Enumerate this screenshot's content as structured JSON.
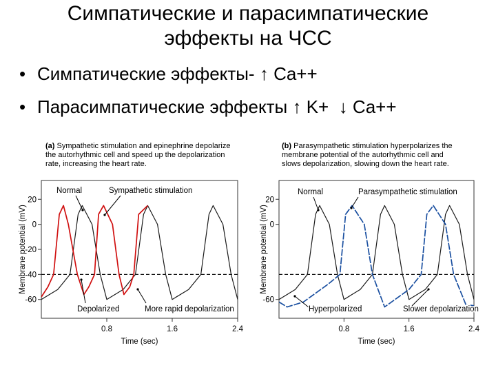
{
  "slide": {
    "title_line1": "Симпатические и парасимпатические",
    "title_line2": "эффекты на ЧСС",
    "bullets": [
      {
        "prefix": "Симпатические эффекты-",
        "arrow1": "↑",
        "text1": "Ca++",
        "arrow2": "",
        "text2": ""
      },
      {
        "prefix": "Парасимпатические эффекты",
        "arrow1": "↑",
        "text1": "K+",
        "arrow2": "↓",
        "text2": "Ca++"
      }
    ]
  },
  "chart_data": [
    {
      "type": "line",
      "panel": "(a)",
      "caption": [
        "Sympathetic stimulation and epinephrine depolarize",
        "the autorhythmic cell and speed up the depolarization",
        "rate, increasing the heart rate."
      ],
      "ylabel": "Membrane potential (mV)",
      "xlabel": "Time (sec)",
      "xlim": [
        0,
        2.4
      ],
      "ylim": [
        -75,
        35
      ],
      "xticks": [
        0.8,
        1.6,
        2.4
      ],
      "yticks": [
        20,
        0,
        -20,
        -40,
        -60
      ],
      "threshold": -40,
      "series": [
        {
          "name": "Normal",
          "color": "#1a1a1a",
          "x": [
            0,
            0.2,
            0.35,
            0.45,
            0.5,
            0.62,
            0.72,
            0.8,
            1.0,
            1.15,
            1.25,
            1.3,
            1.42,
            1.52,
            1.6,
            1.8,
            1.95,
            2.05,
            2.1,
            2.22,
            2.32,
            2.4
          ],
          "y": [
            -60,
            -52,
            -40,
            8,
            15,
            0,
            -40,
            -60,
            -52,
            -40,
            8,
            15,
            0,
            -40,
            -60,
            -52,
            -40,
            8,
            15,
            0,
            -40,
            -60
          ]
        },
        {
          "name": "Sympathetic stimulation",
          "color": "#d01010",
          "x": [
            0,
            0.08,
            0.15,
            0.22,
            0.27,
            0.33,
            0.44,
            0.52,
            0.58,
            0.65,
            0.7,
            0.76,
            0.87,
            0.95,
            1.01,
            1.08,
            1.13,
            1.19,
            1.3
          ],
          "y": [
            -58,
            -50,
            -40,
            8,
            15,
            0,
            -40,
            -56,
            -50,
            -40,
            8,
            15,
            0,
            -40,
            -56,
            -50,
            -40,
            8,
            15
          ]
        }
      ],
      "annotations": [
        "Normal",
        "Sympathetic stimulation",
        "Depolarized",
        "More rapid depolarization"
      ]
    },
    {
      "type": "line",
      "panel": "(b)",
      "caption": [
        "Parasympathetic stimulation hyperpolarizes the",
        "membrane potential of the autorhythmic cell and",
        "slows depolarization, slowing down the heart rate."
      ],
      "ylabel": "Membrane potential (mV)",
      "xlabel": "Time (sec)",
      "xlim": [
        0,
        2.4
      ],
      "ylim": [
        -75,
        35
      ],
      "xticks": [
        0.8,
        1.6,
        2.4
      ],
      "yticks": [
        20,
        0,
        -60
      ],
      "threshold": -40,
      "series": [
        {
          "name": "Normal",
          "color": "#1a1a1a",
          "x": [
            0,
            0.2,
            0.35,
            0.45,
            0.5,
            0.62,
            0.72,
            0.8,
            1.0,
            1.15,
            1.25,
            1.3,
            1.42,
            1.52,
            1.6,
            1.8,
            1.95,
            2.05,
            2.1,
            2.22,
            2.32,
            2.4
          ],
          "y": [
            -60,
            -52,
            -40,
            8,
            15,
            0,
            -40,
            -60,
            -52,
            -40,
            8,
            15,
            0,
            -40,
            -60,
            -52,
            -40,
            8,
            15,
            0,
            -40,
            -60
          ]
        },
        {
          "name": "Parasympathetic stimulation",
          "color": "#1a4fa0",
          "x": [
            0,
            0.1,
            0.3,
            0.6,
            0.75,
            0.82,
            0.9,
            1.05,
            1.15,
            1.3,
            1.6,
            1.75,
            1.82,
            1.9,
            2.05,
            2.15,
            2.3,
            2.4
          ],
          "y": [
            -62,
            -66,
            -62,
            -48,
            -40,
            8,
            15,
            0,
            -40,
            -66,
            -52,
            -40,
            8,
            15,
            0,
            -40,
            -64,
            -65
          ]
        }
      ],
      "annotations": [
        "Normal",
        "Parasympathetic stimulation",
        "Hyperpolarized",
        "Slower depolarization"
      ]
    }
  ]
}
